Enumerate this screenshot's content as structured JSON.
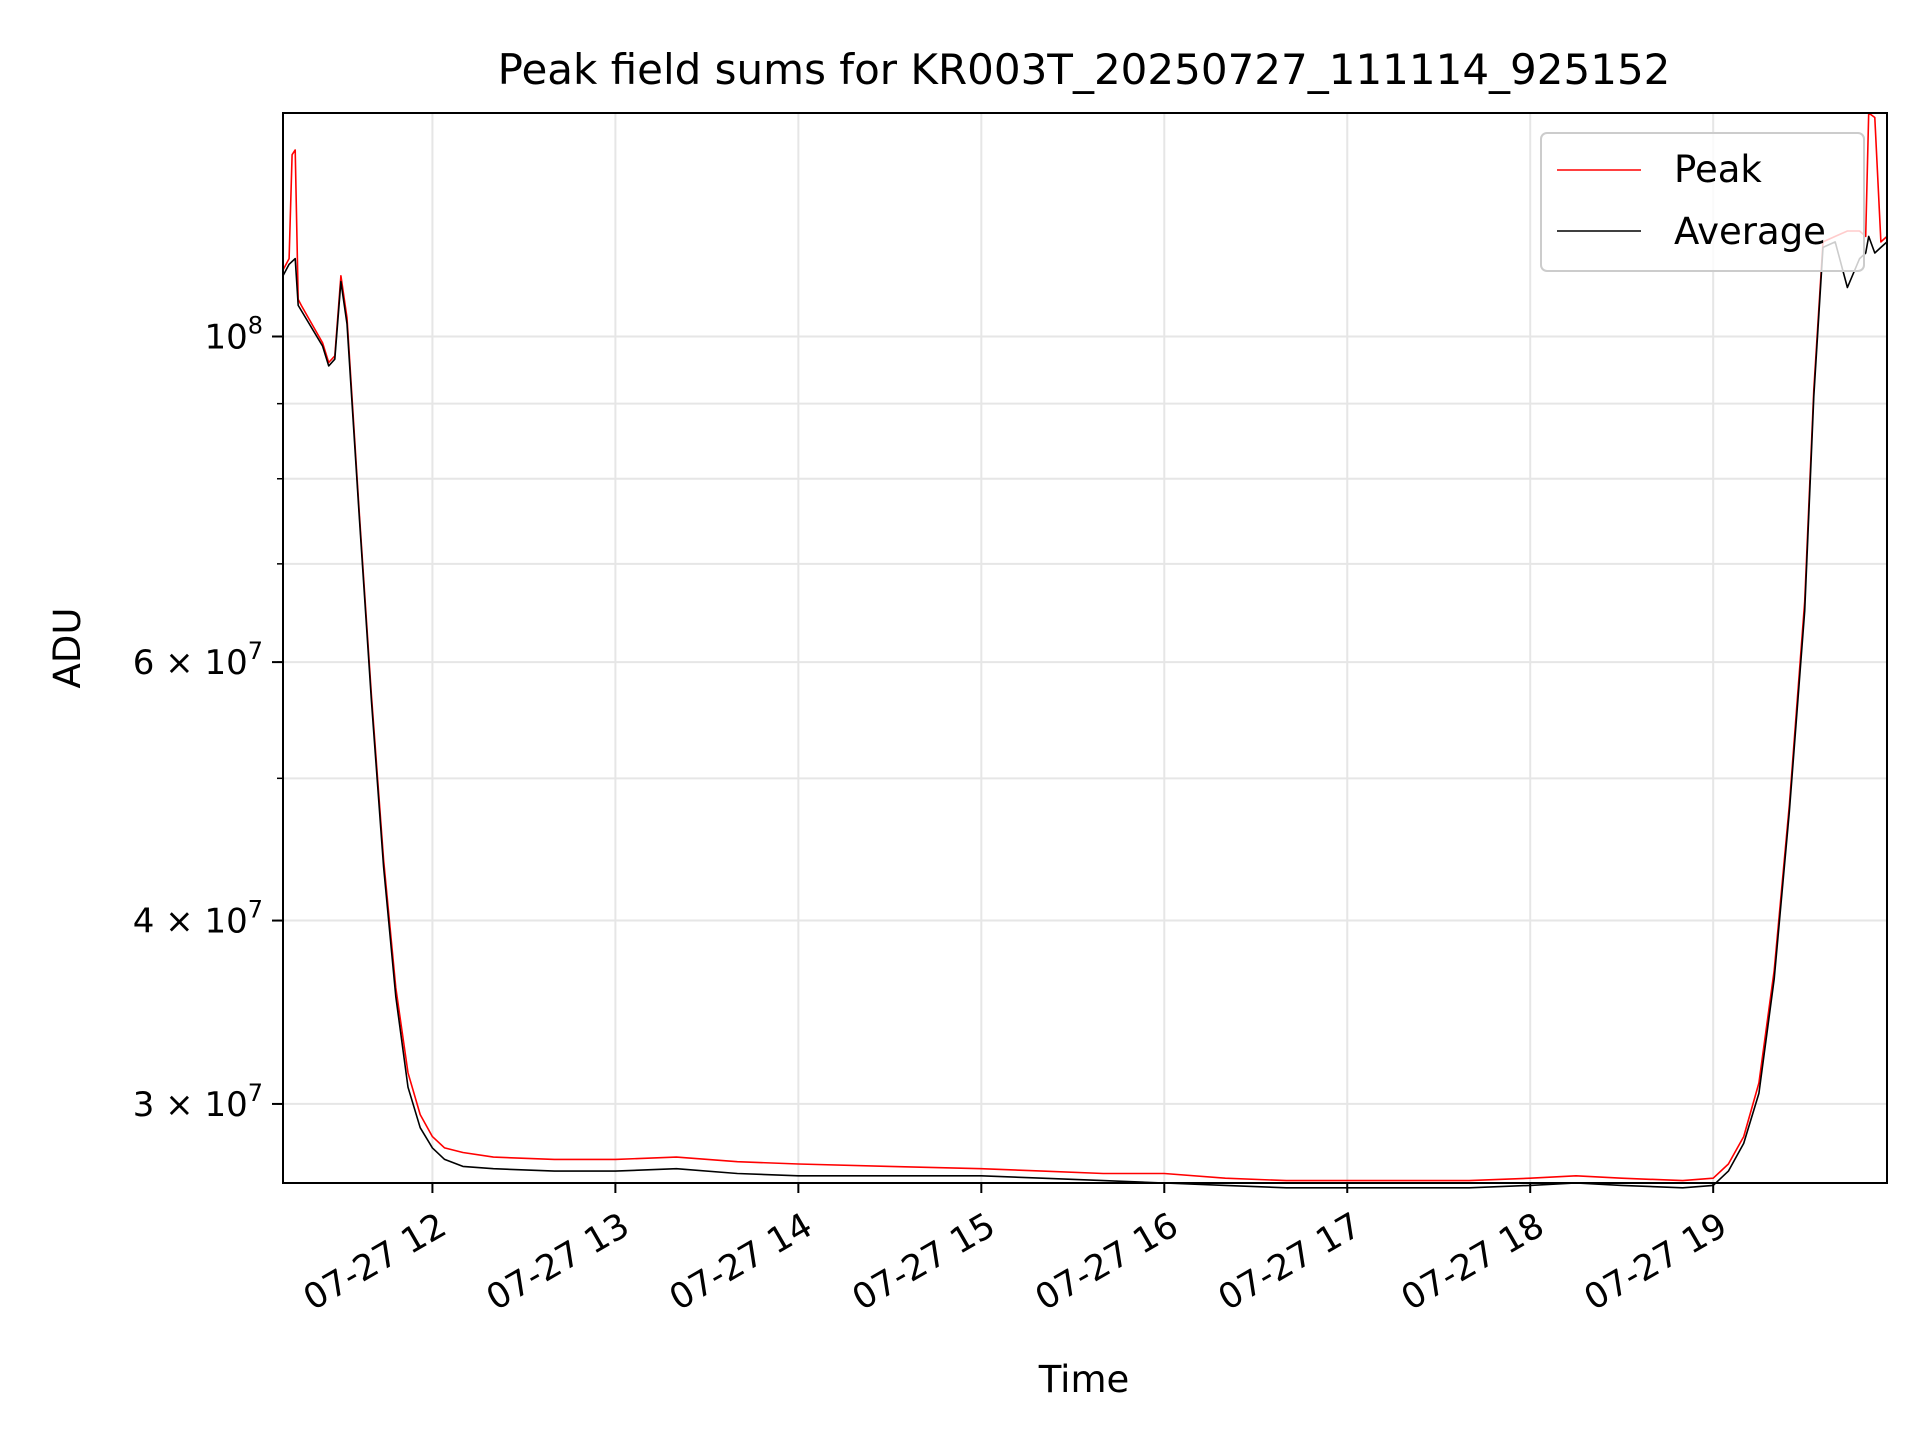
{
  "chart_data": {
    "type": "line",
    "title": "Peak field sums for KR003T_20250727_111114_925152",
    "xlabel": "Time",
    "ylabel": "ADU",
    "x_scale": "time",
    "y_scale": "log",
    "xlim": [
      "2025-07-27 11:11",
      "2025-07-27 19:57"
    ],
    "ylim": [
      26500000,
      142000000
    ],
    "x_tick_labels": [
      "07-27 12",
      "07-27 13",
      "07-27 14",
      "07-27 15",
      "07-27 16",
      "07-27 17",
      "07-27 18",
      "07-27 19"
    ],
    "x_ticks": [
      "2025-07-27 12:00",
      "2025-07-27 13:00",
      "2025-07-27 14:00",
      "2025-07-27 15:00",
      "2025-07-27 16:00",
      "2025-07-27 17:00",
      "2025-07-27 18:00",
      "2025-07-27 19:00"
    ],
    "y_major_ticks": [
      {
        "value": 100000000,
        "label": "10^8"
      },
      {
        "value": 60000000,
        "label": "6 × 10^7"
      },
      {
        "value": 40000000,
        "label": "4 × 10^7"
      },
      {
        "value": 30000000,
        "label": "3 × 10^7"
      }
    ],
    "y_grid_values": [
      30000000,
      40000000,
      50000000,
      60000000,
      70000000,
      80000000,
      90000000,
      100000000
    ],
    "grid": true,
    "legend_position": "top-right",
    "series": [
      {
        "name": "Peak",
        "color": "#ff0000",
        "x": [
          "2025-07-27 11:11",
          "2025-07-27 11:13",
          "2025-07-27 11:14",
          "2025-07-27 11:15",
          "2025-07-27 11:16",
          "2025-07-27 11:17",
          "2025-07-27 11:24",
          "2025-07-27 11:26",
          "2025-07-27 11:28",
          "2025-07-27 11:30",
          "2025-07-27 11:32",
          "2025-07-27 11:36",
          "2025-07-27 11:40",
          "2025-07-27 11:44",
          "2025-07-27 11:48",
          "2025-07-27 11:52",
          "2025-07-27 11:56",
          "2025-07-27 12:00",
          "2025-07-27 12:04",
          "2025-07-27 12:10",
          "2025-07-27 12:20",
          "2025-07-27 12:40",
          "2025-07-27 13:00",
          "2025-07-27 13:20",
          "2025-07-27 13:40",
          "2025-07-27 14:00",
          "2025-07-27 14:30",
          "2025-07-27 15:00",
          "2025-07-27 15:20",
          "2025-07-27 15:40",
          "2025-07-27 16:00",
          "2025-07-27 16:20",
          "2025-07-27 16:40",
          "2025-07-27 17:00",
          "2025-07-27 17:20",
          "2025-07-27 17:40",
          "2025-07-27 18:00",
          "2025-07-27 18:15",
          "2025-07-27 18:30",
          "2025-07-27 18:50",
          "2025-07-27 19:00",
          "2025-07-27 19:05",
          "2025-07-27 19:10",
          "2025-07-27 19:15",
          "2025-07-27 19:20",
          "2025-07-27 19:25",
          "2025-07-27 19:30",
          "2025-07-27 19:33",
          "2025-07-27 19:36",
          "2025-07-27 19:40",
          "2025-07-27 19:44",
          "2025-07-27 19:48",
          "2025-07-27 19:50",
          "2025-07-27 19:51",
          "2025-07-27 19:53",
          "2025-07-27 19:55",
          "2025-07-27 19:57"
        ],
        "y": [
          111000000,
          113000000,
          133000000,
          134000000,
          106000000,
          105000000,
          99000000,
          96000000,
          97000000,
          110000000,
          103000000,
          76000000,
          57000000,
          44000000,
          36000000,
          31500000,
          29500000,
          28500000,
          28000000,
          27800000,
          27600000,
          27500000,
          27500000,
          27600000,
          27400000,
          27300000,
          27200000,
          27100000,
          27000000,
          26900000,
          26900000,
          26700000,
          26600000,
          26600000,
          26600000,
          26600000,
          26700000,
          26800000,
          26700000,
          26600000,
          26700000,
          27300000,
          28500000,
          31000000,
          37000000,
          48000000,
          66000000,
          92000000,
          116000000,
          117000000,
          118000000,
          118000000,
          117000000,
          142000000,
          141000000,
          116000000,
          117000000
        ]
      },
      {
        "name": "Average",
        "color": "#000000",
        "x": [
          "2025-07-27 11:11",
          "2025-07-27 11:13",
          "2025-07-27 11:15",
          "2025-07-27 11:16",
          "2025-07-27 11:24",
          "2025-07-27 11:26",
          "2025-07-27 11:28",
          "2025-07-27 11:30",
          "2025-07-27 11:32",
          "2025-07-27 11:36",
          "2025-07-27 11:40",
          "2025-07-27 11:44",
          "2025-07-27 11:48",
          "2025-07-27 11:52",
          "2025-07-27 11:56",
          "2025-07-27 12:00",
          "2025-07-27 12:04",
          "2025-07-27 12:10",
          "2025-07-27 12:20",
          "2025-07-27 12:40",
          "2025-07-27 13:00",
          "2025-07-27 13:20",
          "2025-07-27 13:40",
          "2025-07-27 14:00",
          "2025-07-27 14:30",
          "2025-07-27 15:00",
          "2025-07-27 15:20",
          "2025-07-27 15:40",
          "2025-07-27 16:00",
          "2025-07-27 16:20",
          "2025-07-27 16:40",
          "2025-07-27 17:00",
          "2025-07-27 17:20",
          "2025-07-27 17:40",
          "2025-07-27 18:00",
          "2025-07-27 18:15",
          "2025-07-27 18:30",
          "2025-07-27 18:50",
          "2025-07-27 19:00",
          "2025-07-27 19:05",
          "2025-07-27 19:10",
          "2025-07-27 19:15",
          "2025-07-27 19:20",
          "2025-07-27 19:25",
          "2025-07-27 19:30",
          "2025-07-27 19:33",
          "2025-07-27 19:36",
          "2025-07-27 19:40",
          "2025-07-27 19:44",
          "2025-07-27 19:48",
          "2025-07-27 19:50",
          "2025-07-27 19:51",
          "2025-07-27 19:53",
          "2025-07-27 19:55",
          "2025-07-27 19:57"
        ],
        "y": [
          110000000,
          112000000,
          113000000,
          105000000,
          98500000,
          95500000,
          96500000,
          109000000,
          102000000,
          75500000,
          56500000,
          43500000,
          35500000,
          30800000,
          28900000,
          28000000,
          27500000,
          27200000,
          27100000,
          27000000,
          27000000,
          27100000,
          26900000,
          26800000,
          26800000,
          26800000,
          26700000,
          26600000,
          26500000,
          26400000,
          26300000,
          26300000,
          26300000,
          26300000,
          26400000,
          26500000,
          26400000,
          26300000,
          26400000,
          27000000,
          28200000,
          30500000,
          36500000,
          47500000,
          65000000,
          91000000,
          115000000,
          116000000,
          108000000,
          113000000,
          114000000,
          117000000,
          114000000,
          115000000,
          116000000
        ]
      }
    ]
  }
}
